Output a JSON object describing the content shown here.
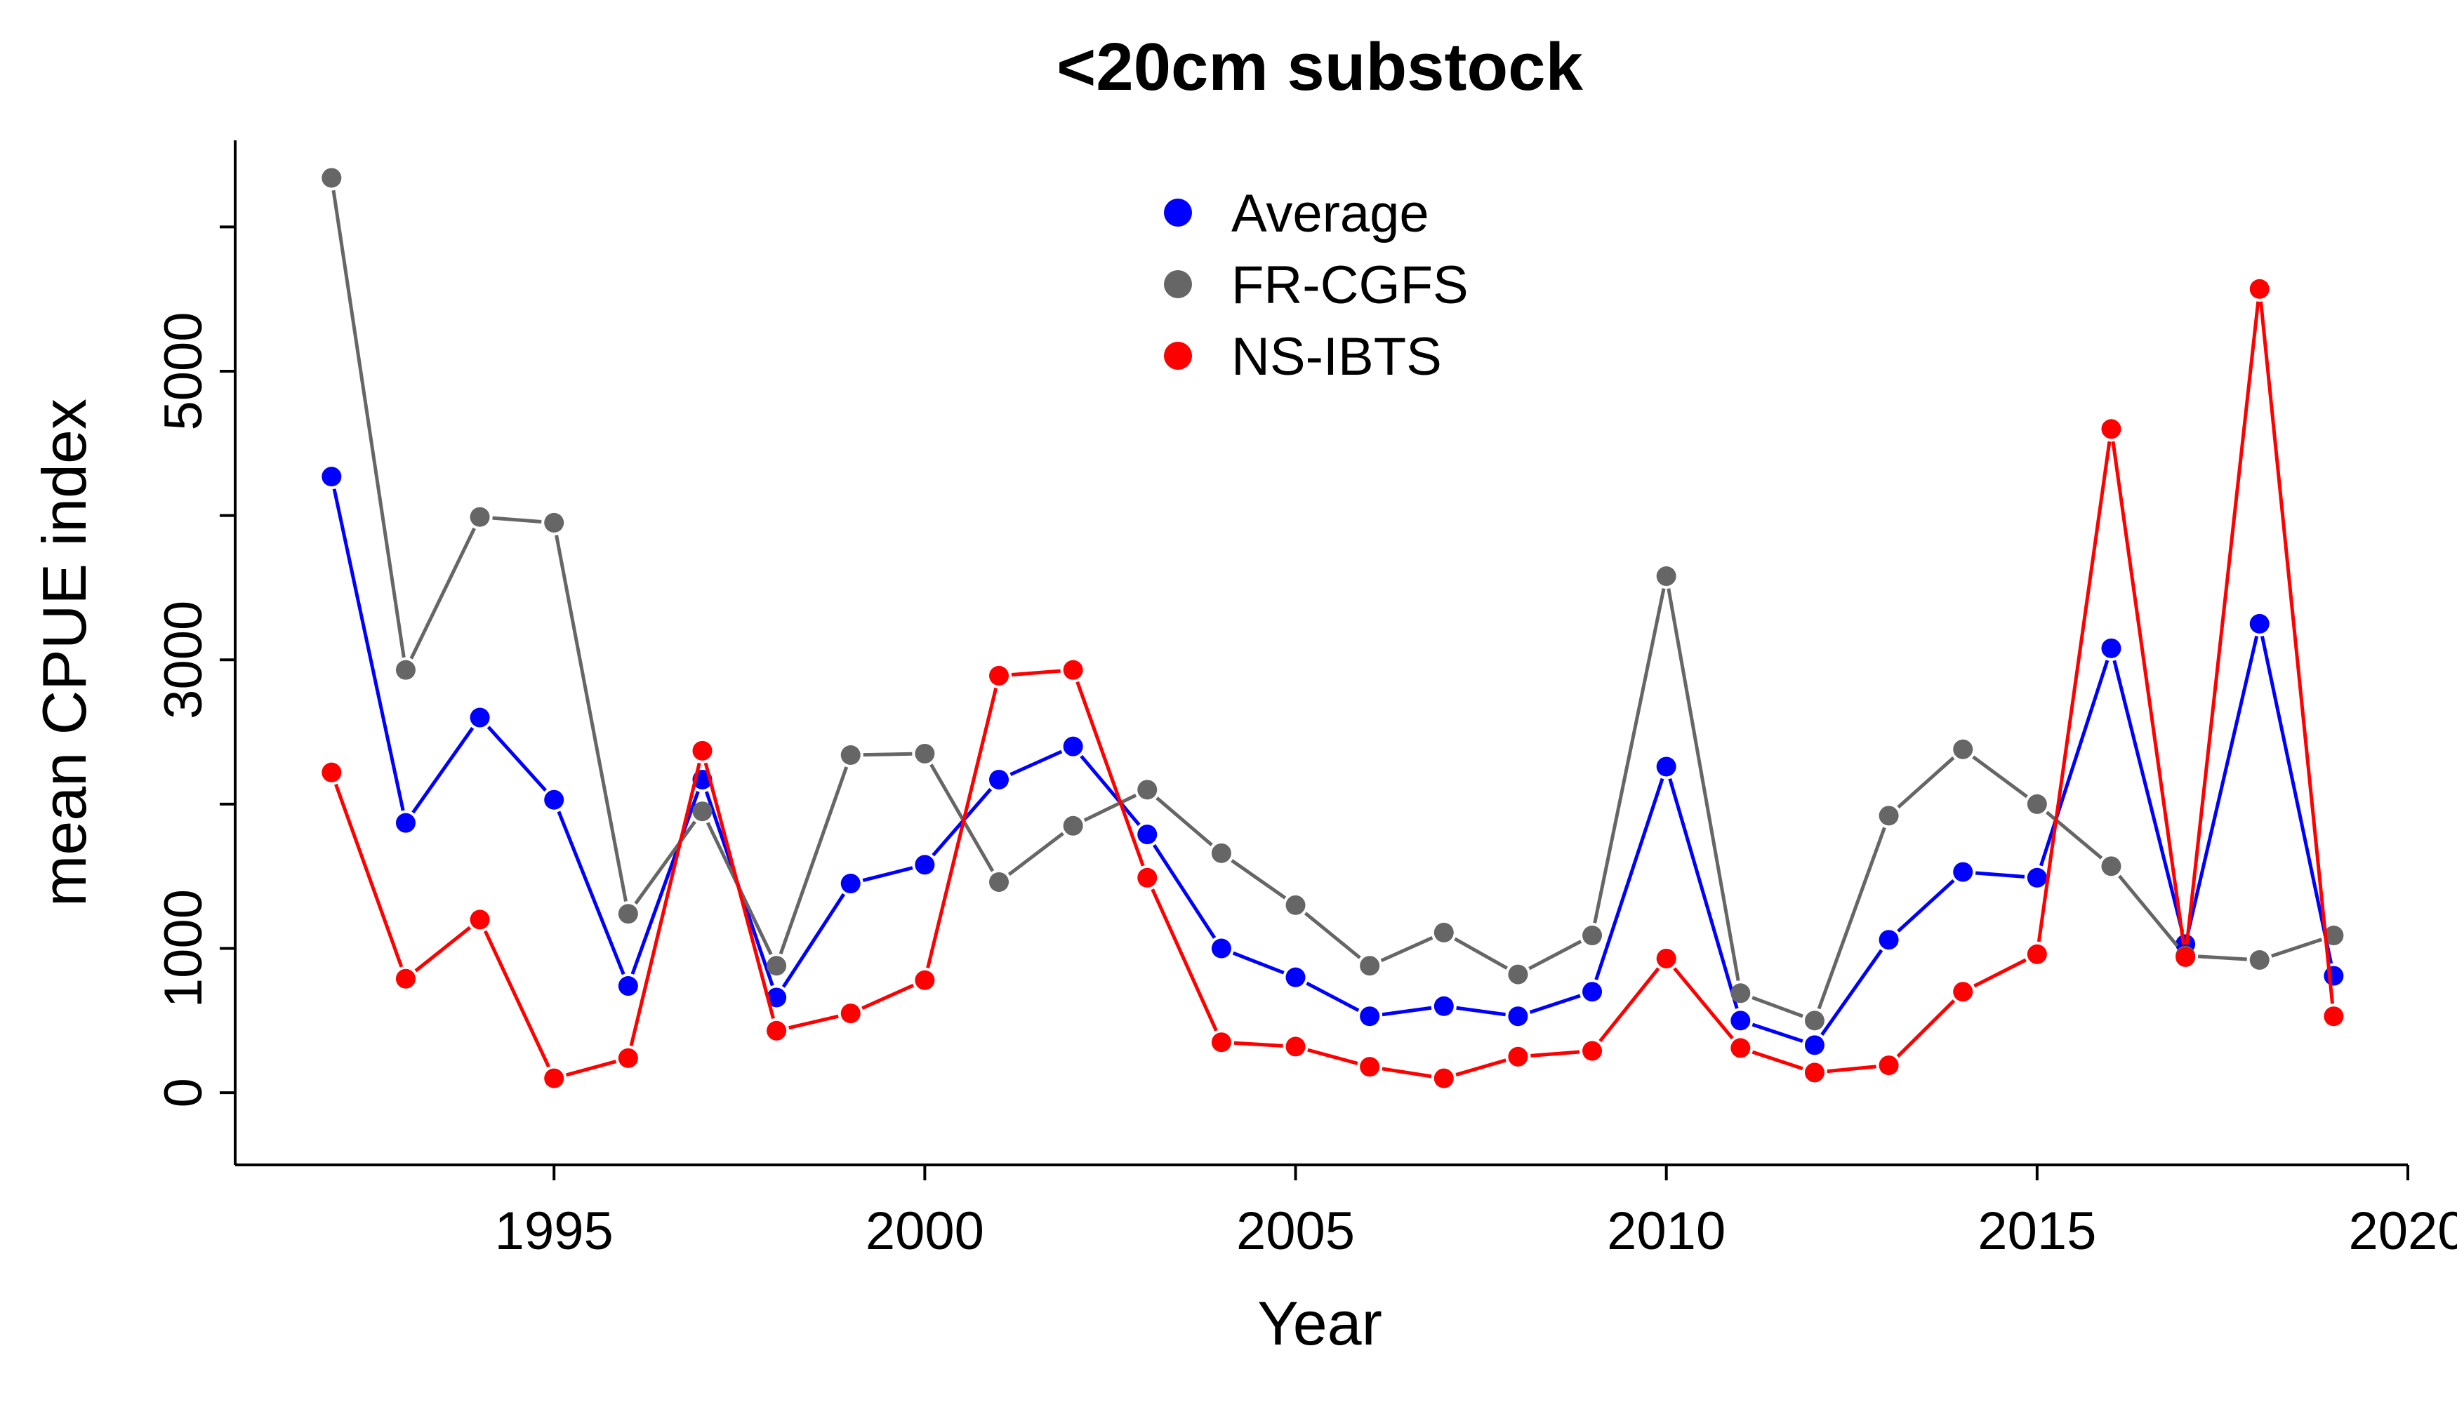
{
  "chart_data": {
    "type": "line",
    "title": "<20cm substock",
    "xlabel": "Year",
    "ylabel": "mean CPUE index",
    "xlim": [
      1990.7,
      2020
    ],
    "ylim": [
      -500,
      6600
    ],
    "x_ticks": [
      1995,
      2000,
      2005,
      2010,
      2015,
      2020
    ],
    "x_tick_labels": [
      "1995",
      "2000",
      "2005",
      "2010",
      "2015",
      "2020"
    ],
    "y_ticks": [
      0,
      1000,
      3000,
      5000
    ],
    "y_tick_labels": [
      "0",
      "1000",
      "3000",
      "5000"
    ],
    "y_minor_ticks": [
      2000,
      4000,
      6000
    ],
    "grid": false,
    "legend_position": "top-center",
    "x": [
      1992,
      1993,
      1994,
      1995,
      1996,
      1997,
      1998,
      1999,
      2000,
      2001,
      2002,
      2003,
      2004,
      2005,
      2006,
      2007,
      2008,
      2009,
      2010,
      2011,
      2012,
      2013,
      2014,
      2015,
      2016,
      2017,
      2018,
      2019
    ],
    "series": [
      {
        "name": "Average",
        "color": "#0000FF",
        "values": [
          4270,
          1870,
          2600,
          2030,
          740,
          2170,
          660,
          1450,
          1580,
          2170,
          2400,
          1790,
          1000,
          800,
          530,
          600,
          530,
          700,
          2260,
          500,
          330,
          1060,
          1530,
          1490,
          3080,
          1030,
          3250,
          810
        ]
      },
      {
        "name": "FR-CGFS",
        "color": "#666666",
        "values": [
          6340,
          2930,
          3990,
          3950,
          1240,
          1950,
          880,
          2340,
          2350,
          1460,
          1850,
          2100,
          1660,
          1300,
          880,
          1110,
          820,
          1090,
          3580,
          690,
          500,
          1920,
          2380,
          2000,
          1570,
          950,
          920,
          1090
        ]
      },
      {
        "name": "NS-IBTS",
        "color": "#FF0000",
        "values": [
          2220,
          790,
          1200,
          100,
          240,
          2370,
          430,
          550,
          780,
          2890,
          2930,
          1490,
          350,
          320,
          180,
          100,
          250,
          290,
          930,
          310,
          140,
          190,
          700,
          960,
          4600,
          940,
          5570,
          530
        ]
      }
    ]
  }
}
